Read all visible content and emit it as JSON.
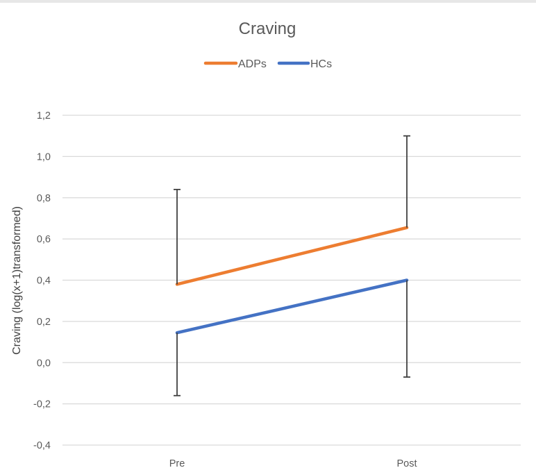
{
  "chart_data": {
    "type": "line",
    "title": "Craving",
    "xlabel": "",
    "ylabel": "Craving  (log(x+1)transformed)",
    "categories": [
      "Pre",
      "Post"
    ],
    "ylim": [
      -0.4,
      1.2
    ],
    "yticks": [
      -0.4,
      -0.2,
      0.0,
      0.2,
      0.4,
      0.6,
      0.8,
      1.0,
      1.2
    ],
    "ytick_labels": [
      "-0,4",
      "-0,2",
      "0,0",
      "0,2",
      "0,4",
      "0,6",
      "0,8",
      "1,0",
      "1,2"
    ],
    "grid": true,
    "legend_position": "top",
    "series": [
      {
        "name": "ADPs",
        "color": "#ED7D31",
        "values": [
          0.38,
          0.655
        ],
        "error_upper": [
          0.84,
          1.1
        ],
        "error_lower": null
      },
      {
        "name": "HCs",
        "color": "#4472C4",
        "values": [
          0.145,
          0.4
        ],
        "error_upper": null,
        "error_lower": [
          -0.16,
          -0.07
        ]
      }
    ],
    "gridline_color": "#d9d9d9",
    "errorbar_color": "#404040"
  }
}
